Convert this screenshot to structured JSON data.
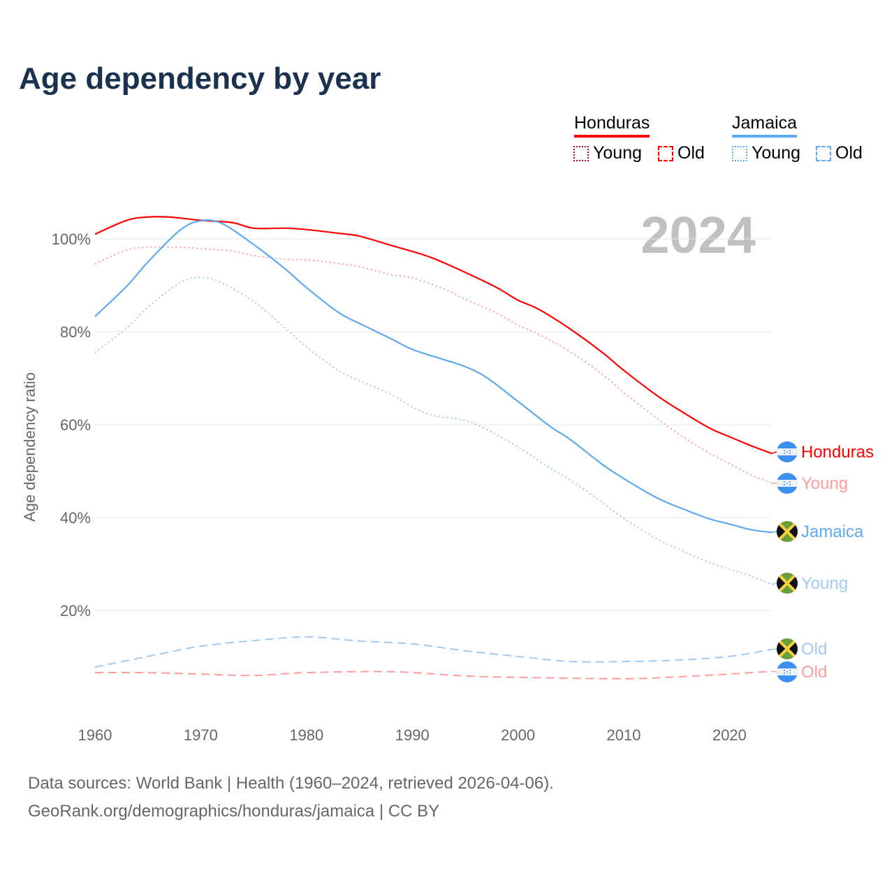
{
  "title": "Age dependency by year",
  "year_watermark": "2024",
  "legend": {
    "groups": [
      {
        "name": "Honduras",
        "color": "#ff0000",
        "items": [
          "Young",
          "Old"
        ]
      },
      {
        "name": "Jamaica",
        "color": "#5ea9f0",
        "items": [
          "Young",
          "Old"
        ]
      }
    ]
  },
  "footer": {
    "line1": "Data sources: World Bank | Health (1960–2024, retrieved 2026-04-06).",
    "line2": "GeoRank.org/demographics/honduras/jamaica | CC BY"
  },
  "chart_data": {
    "type": "line",
    "title": "Age dependency by year",
    "xlabel": "",
    "ylabel": "Age dependency ratio",
    "xlim": [
      1960,
      2024
    ],
    "ylim": [
      0,
      110
    ],
    "xticks": [
      "1960",
      "1970",
      "1980",
      "1990",
      "2000",
      "2010",
      "2020"
    ],
    "yticks": [
      "20%",
      "40%",
      "60%",
      "80%",
      "100%"
    ],
    "grid": true,
    "series": [
      {
        "name": "Honduras",
        "label": "Honduras",
        "country": "honduras",
        "color": "#ff0000",
        "style": "solid",
        "points": [
          [
            1960,
            101
          ],
          [
            1963,
            104
          ],
          [
            1965,
            104.7
          ],
          [
            1967,
            104.7
          ],
          [
            1970,
            104
          ],
          [
            1973,
            103.5
          ],
          [
            1975,
            102.3
          ],
          [
            1978,
            102.3
          ],
          [
            1980,
            102
          ],
          [
            1983,
            101.2
          ],
          [
            1985,
            100.6
          ],
          [
            1988,
            98.6
          ],
          [
            1990,
            97.3
          ],
          [
            1992,
            95.8
          ],
          [
            1995,
            92.8
          ],
          [
            1998,
            89.5
          ],
          [
            2000,
            86.8
          ],
          [
            2002,
            84.8
          ],
          [
            2005,
            80.5
          ],
          [
            2008,
            75.5
          ],
          [
            2010,
            71.7
          ],
          [
            2013,
            66.5
          ],
          [
            2015,
            63.5
          ],
          [
            2018,
            59.4
          ],
          [
            2020,
            57.4
          ],
          [
            2022,
            55.5
          ],
          [
            2024,
            53.8
          ]
        ]
      },
      {
        "name": "Honduras Young",
        "label": "Young",
        "country": "honduras",
        "color": "#ff9c9c",
        "style": "dotted",
        "points": [
          [
            1960,
            94.6
          ],
          [
            1963,
            97.6
          ],
          [
            1965,
            98.2
          ],
          [
            1968,
            98.2
          ],
          [
            1970,
            97.9
          ],
          [
            1973,
            97.4
          ],
          [
            1975,
            96.4
          ],
          [
            1978,
            95.6
          ],
          [
            1980,
            95.5
          ],
          [
            1983,
            94.7
          ],
          [
            1985,
            94
          ],
          [
            1988,
            92.3
          ],
          [
            1990,
            91.6
          ],
          [
            1993,
            89.2
          ],
          [
            1995,
            87
          ],
          [
            1998,
            84
          ],
          [
            2000,
            81.4
          ],
          [
            2002,
            79.4
          ],
          [
            2005,
            75.6
          ],
          [
            2008,
            70.8
          ],
          [
            2010,
            66.9
          ],
          [
            2013,
            61.6
          ],
          [
            2015,
            58.3
          ],
          [
            2018,
            54
          ],
          [
            2020,
            51.6
          ],
          [
            2022,
            49.2
          ],
          [
            2024,
            47.4
          ]
        ]
      },
      {
        "name": "Jamaica",
        "label": "Jamaica",
        "country": "jamaica",
        "color": "#5ea9f0",
        "style": "solid",
        "points": [
          [
            1960,
            83.3
          ],
          [
            1963,
            89.8
          ],
          [
            1965,
            95
          ],
          [
            1968,
            101.8
          ],
          [
            1970,
            103.9
          ],
          [
            1972,
            103.3
          ],
          [
            1975,
            98.8
          ],
          [
            1978,
            93.5
          ],
          [
            1980,
            89.5
          ],
          [
            1983,
            84.2
          ],
          [
            1985,
            81.8
          ],
          [
            1988,
            78.5
          ],
          [
            1990,
            76.2
          ],
          [
            1993,
            74
          ],
          [
            1995,
            72.5
          ],
          [
            1997,
            70.2
          ],
          [
            2000,
            65
          ],
          [
            2003,
            59.7
          ],
          [
            2005,
            56.7
          ],
          [
            2008,
            51.4
          ],
          [
            2010,
            48.4
          ],
          [
            2013,
            44.4
          ],
          [
            2015,
            42.4
          ],
          [
            2018,
            39.8
          ],
          [
            2020,
            38.6
          ],
          [
            2022,
            37.4
          ],
          [
            2024,
            36.8
          ]
        ]
      },
      {
        "name": "Jamaica Young",
        "label": "Young",
        "country": "jamaica",
        "color": "#a3c9f2",
        "style": "dotted",
        "points": [
          [
            1960,
            75.5
          ],
          [
            1963,
            80.8
          ],
          [
            1965,
            85.3
          ],
          [
            1968,
            90.5
          ],
          [
            1970,
            91.7
          ],
          [
            1972,
            90.5
          ],
          [
            1975,
            86.5
          ],
          [
            1978,
            80.8
          ],
          [
            1980,
            76.7
          ],
          [
            1983,
            71.7
          ],
          [
            1985,
            69.5
          ],
          [
            1988,
            66.5
          ],
          [
            1990,
            63.8
          ],
          [
            1992,
            62
          ],
          [
            1995,
            60.9
          ],
          [
            1997,
            59
          ],
          [
            2000,
            55.2
          ],
          [
            2003,
            50.7
          ],
          [
            2005,
            48
          ],
          [
            2008,
            43.2
          ],
          [
            2010,
            39.8
          ],
          [
            2013,
            35.6
          ],
          [
            2015,
            33.4
          ],
          [
            2018,
            30.4
          ],
          [
            2020,
            28.9
          ],
          [
            2022,
            27.4
          ],
          [
            2024,
            25.6
          ]
        ]
      },
      {
        "name": "Jamaica Old",
        "label": "Old",
        "country": "jamaica",
        "color": "#a3c9f2",
        "style": "dashed",
        "points": [
          [
            1960,
            7.8
          ],
          [
            1965,
            10.1
          ],
          [
            1970,
            12.3
          ],
          [
            1975,
            13.5
          ],
          [
            1980,
            14.3
          ],
          [
            1985,
            13.4
          ],
          [
            1990,
            12.8
          ],
          [
            1995,
            11.3
          ],
          [
            2000,
            10.1
          ],
          [
            2005,
            9
          ],
          [
            2010,
            9
          ],
          [
            2015,
            9.3
          ],
          [
            2020,
            10.1
          ],
          [
            2024,
            11.6
          ]
        ]
      },
      {
        "name": "Honduras Old",
        "label": "Old",
        "country": "honduras",
        "color": "#ff9c9c",
        "style": "dashed",
        "points": [
          [
            1960,
            6.6
          ],
          [
            1965,
            6.6
          ],
          [
            1970,
            6.3
          ],
          [
            1975,
            6
          ],
          [
            1980,
            6.6
          ],
          [
            1988,
            6.8
          ],
          [
            1995,
            5.9
          ],
          [
            2000,
            5.6
          ],
          [
            2010,
            5.3
          ],
          [
            2015,
            5.7
          ],
          [
            2020,
            6.3
          ],
          [
            2024,
            6.9
          ]
        ]
      }
    ]
  }
}
